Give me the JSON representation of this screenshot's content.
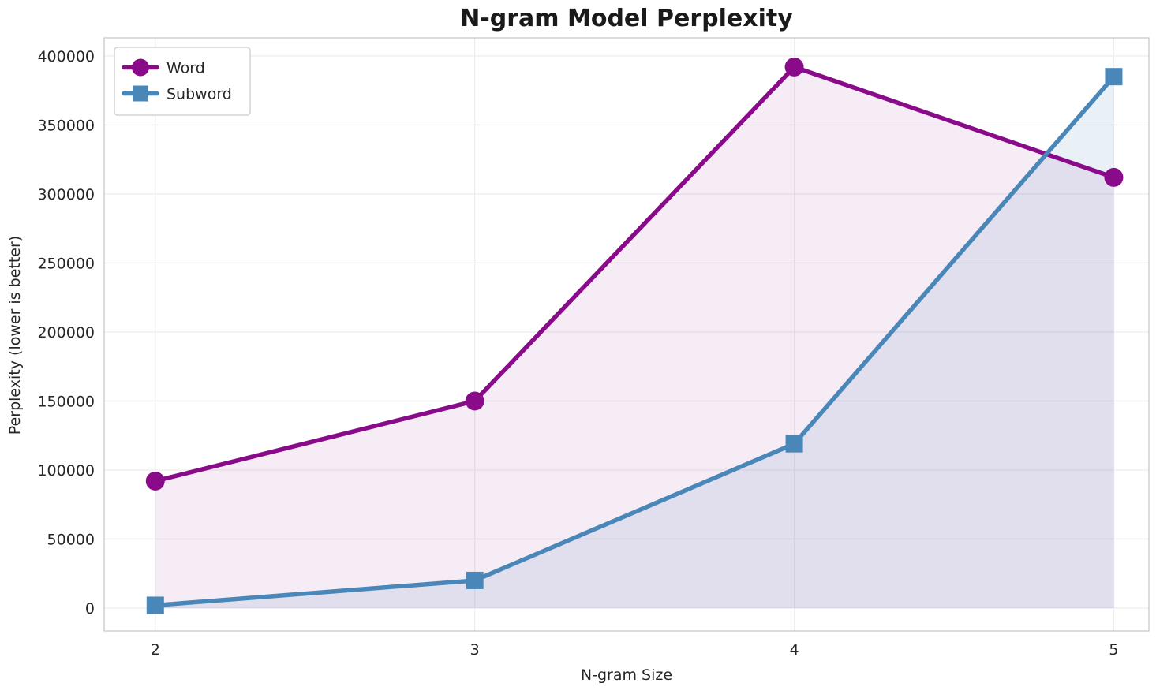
{
  "title": "N-gram Model Perplexity",
  "chart_data": {
    "type": "line",
    "title": "N-gram Model Perplexity",
    "xlabel": "N-gram Size",
    "ylabel": "Perplexity (lower is better)",
    "x": [
      2,
      3,
      4,
      5
    ],
    "series": [
      {
        "name": "Word",
        "color": "#8a0b8a",
        "fill_color": "rgba(138, 11, 138, 0.08)",
        "marker": "circle",
        "values": [
          92000,
          150000,
          392000,
          312000
        ]
      },
      {
        "name": "Subword",
        "color": "#4a87b9",
        "fill_color": "rgba(74, 135, 185, 0.12)",
        "marker": "square",
        "values": [
          2000,
          20000,
          119000,
          385000
        ]
      }
    ],
    "xticks": [
      2,
      3,
      4,
      5
    ],
    "yticks": [
      0,
      50000,
      100000,
      150000,
      200000,
      250000,
      300000,
      350000,
      400000
    ],
    "xlim": [
      1.84,
      5.11
    ],
    "ylim": [
      -16600,
      413100
    ],
    "area_baseline": 0,
    "grid": true,
    "legend_position": "upper left",
    "legend_entries": [
      "Word",
      "Subword"
    ]
  }
}
